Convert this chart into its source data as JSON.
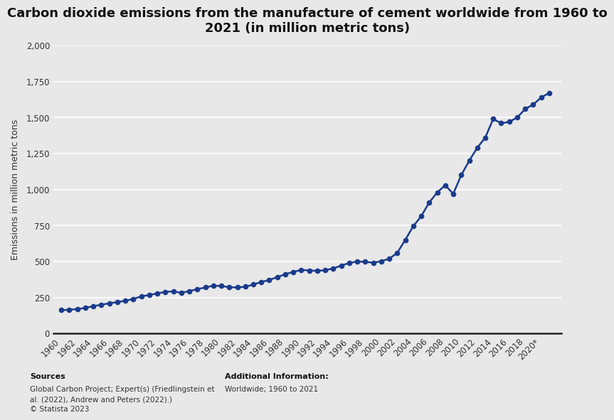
{
  "title": "Carbon dioxide emissions from the manufacture of cement worldwide from 1960 to\n2021 (in million metric tons)",
  "ylabel": "Emissions in million metric tons",
  "years": [
    1960,
    1961,
    1962,
    1963,
    1964,
    1965,
    1966,
    1967,
    1968,
    1969,
    1970,
    1971,
    1972,
    1973,
    1974,
    1975,
    1976,
    1977,
    1978,
    1979,
    1980,
    1981,
    1982,
    1983,
    1984,
    1985,
    1986,
    1987,
    1988,
    1989,
    1990,
    1991,
    1992,
    1993,
    1994,
    1995,
    1996,
    1997,
    1998,
    1999,
    2000,
    2001,
    2002,
    2003,
    2004,
    2005,
    2006,
    2007,
    2008,
    2009,
    2010,
    2011,
    2012,
    2013,
    2014,
    2015,
    2016,
    2017,
    2018,
    2019,
    2020,
    2021
  ],
  "values": [
    162,
    165,
    170,
    178,
    190,
    200,
    210,
    218,
    228,
    240,
    258,
    268,
    278,
    290,
    292,
    283,
    295,
    308,
    320,
    332,
    330,
    322,
    320,
    325,
    340,
    358,
    372,
    392,
    412,
    428,
    442,
    438,
    435,
    440,
    452,
    472,
    490,
    500,
    498,
    492,
    502,
    520,
    560,
    650,
    745,
    815,
    910,
    980,
    1030,
    970,
    1100,
    1200,
    1290,
    1360,
    1490,
    1460,
    1470,
    1500,
    1560,
    1590,
    1640,
    1670
  ],
  "xtick_years": [
    "1960",
    "1962",
    "1964",
    "1966",
    "1968",
    "1970",
    "1972",
    "1974",
    "1976",
    "1978",
    "1980",
    "1982",
    "1984",
    "1986",
    "1988",
    "1990",
    "1992",
    "1994",
    "1996",
    "1998",
    "2000",
    "2002",
    "2004",
    "2006",
    "2008",
    "2010",
    "2012",
    "2014",
    "2016",
    "2018",
    "2020*"
  ],
  "yticks": [
    0,
    250,
    500,
    750,
    1000,
    1250,
    1500,
    1750,
    2000
  ],
  "ytick_labels": [
    "0",
    "250",
    "500",
    "750",
    "1,000",
    "1,250",
    "1,500",
    "1,750",
    "2,000"
  ],
  "ylim": [
    0,
    2000
  ],
  "line_color": "#1a3b8c",
  "marker_color": "#1a3b8c",
  "bg_color": "#e8e8e8",
  "plot_bg_color": "#e8e8e8",
  "grid_color": "#ffffff",
  "title_fontsize": 13,
  "label_fontsize": 9,
  "tick_fontsize": 8.5,
  "source_bold": "Sources",
  "source_normal": "Global Carbon Project; Expert(s) (Friedlingstein et\nal. (2022), Andrew and Peters (2022).)\n© Statista 2023",
  "additional_bold": "Additional Information:",
  "additional_normal": "Worldwide; 1960 to 2021"
}
